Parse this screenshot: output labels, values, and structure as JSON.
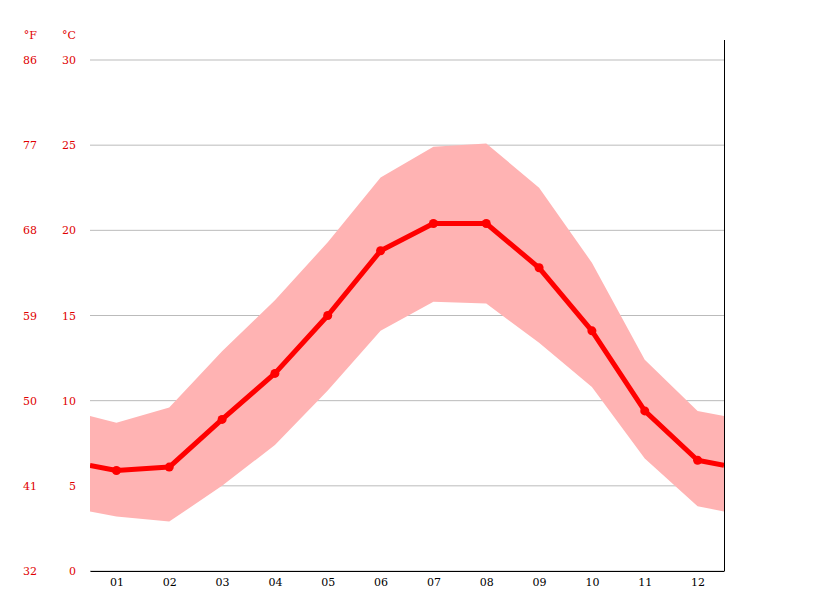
{
  "chart_data": {
    "type": "line",
    "ylabel": "°C",
    "y2label": "°F",
    "x": [
      0.5,
      1,
      2,
      3,
      4,
      5,
      6,
      7,
      8,
      9,
      10,
      11,
      12,
      12.5
    ],
    "xlim": [
      0.5,
      12.5
    ],
    "xticks": [
      {
        "value": 1,
        "label": "01"
      },
      {
        "value": 2,
        "label": "02"
      },
      {
        "value": 3,
        "label": "03"
      },
      {
        "value": 4,
        "label": "04"
      },
      {
        "value": 5,
        "label": "05"
      },
      {
        "value": 6,
        "label": "06"
      },
      {
        "value": 7,
        "label": "07"
      },
      {
        "value": 8,
        "label": "08"
      },
      {
        "value": 9,
        "label": "09"
      },
      {
        "value": 10,
        "label": "10"
      },
      {
        "value": 11,
        "label": "11"
      },
      {
        "value": 12,
        "label": "12"
      }
    ],
    "ylim": [
      0,
      30
    ],
    "yticks": [
      0,
      5,
      10,
      15,
      20,
      25,
      30
    ],
    "y2lim": [
      32,
      86
    ],
    "y2ticks": [
      32,
      41,
      50,
      59,
      68,
      77,
      86
    ],
    "grid": true,
    "series": [
      {
        "type": "band",
        "color": "#ffb3b3",
        "low": [
          3.5,
          3.2,
          2.9,
          5.0,
          7.4,
          10.6,
          14.1,
          15.8,
          15.7,
          13.4,
          10.8,
          6.6,
          3.8,
          3.5
        ],
        "high": [
          9.1,
          8.7,
          9.6,
          12.9,
          15.9,
          19.3,
          23.1,
          24.9,
          25.1,
          22.5,
          18.1,
          12.4,
          9.4,
          9.1
        ]
      },
      {
        "type": "line",
        "color": "#ff0000",
        "marker": "circle",
        "values": [
          6.2,
          5.9,
          6.1,
          8.9,
          11.6,
          15.0,
          18.8,
          20.4,
          20.4,
          17.8,
          14.1,
          9.4,
          6.5,
          6.2
        ]
      }
    ]
  }
}
